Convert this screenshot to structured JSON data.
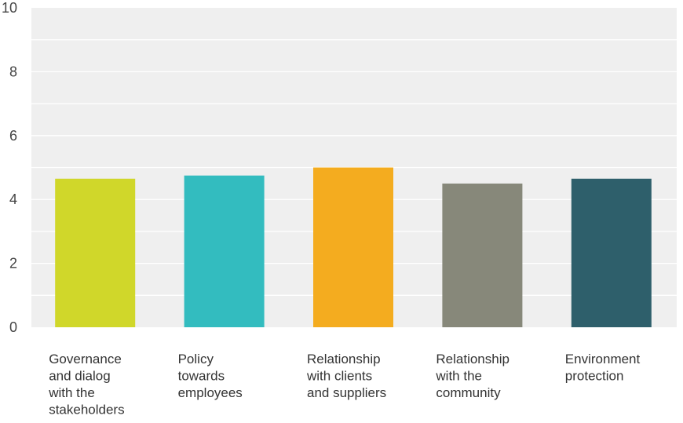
{
  "chart_data": {
    "type": "bar",
    "categories": [
      "Governance and dialog with the stakeholders",
      "Policy towards employees",
      "Relationship with clients and suppliers",
      "Relationship with the community",
      "Environment protection"
    ],
    "category_lines": [
      [
        "Governance",
        "and dialog",
        "with the",
        "stakeholders"
      ],
      [
        "Policy",
        "towards",
        "employees"
      ],
      [
        "Relationship",
        "with clients",
        "and suppliers"
      ],
      [
        "Relationship",
        "with the",
        "community"
      ],
      [
        "Environment",
        "protection"
      ]
    ],
    "values": [
      4.65,
      4.75,
      5.0,
      4.5,
      4.65
    ],
    "colors": [
      "#d0d72a",
      "#33bcbf",
      "#f4ac1f",
      "#87887a",
      "#2e5f6b"
    ],
    "ylim": [
      0,
      10
    ],
    "y_ticks": [
      0,
      2,
      4,
      6,
      8,
      10
    ],
    "grid": true,
    "plot_background": "#efefef",
    "gridline_color": "#ffffff"
  }
}
